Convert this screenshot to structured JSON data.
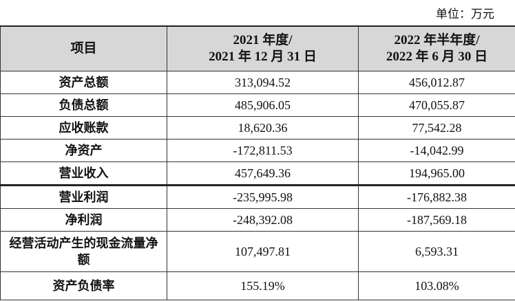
{
  "unit_label": "单位：万元",
  "header": {
    "item": "项目",
    "col1_line1": "2021 年度/",
    "col1_line2": "2021 年 12 月 31 日",
    "col2_line1": "2022 年半年度/",
    "col2_line2": "2022 年 6 月 30 日"
  },
  "rows": [
    {
      "label": "资产总额",
      "v2021": "313,094.52",
      "v2022": "456,012.87"
    },
    {
      "label": "负债总额",
      "v2021": "485,906.05",
      "v2022": "470,055.87"
    },
    {
      "label": "应收账款",
      "v2021": "18,620.36",
      "v2022": "77,542.28"
    },
    {
      "label": "净资产",
      "v2021": "-172,811.53",
      "v2022": "-14,042.99"
    },
    {
      "label": "营业收入",
      "v2021": "457,649.36",
      "v2022": "194,965.00"
    },
    {
      "label": "营业利润",
      "v2021": "-235,995.98",
      "v2022": "-176,882.38"
    },
    {
      "label": "净利润",
      "v2021": "-248,392.08",
      "v2022": "-187,569.18"
    },
    {
      "label": "经营活动产生的现金流量净额",
      "v2021": "107,497.81",
      "v2022": "6,593.31"
    },
    {
      "label": "资产负债率",
      "v2021": "155.19%",
      "v2022": "103.08%"
    }
  ]
}
